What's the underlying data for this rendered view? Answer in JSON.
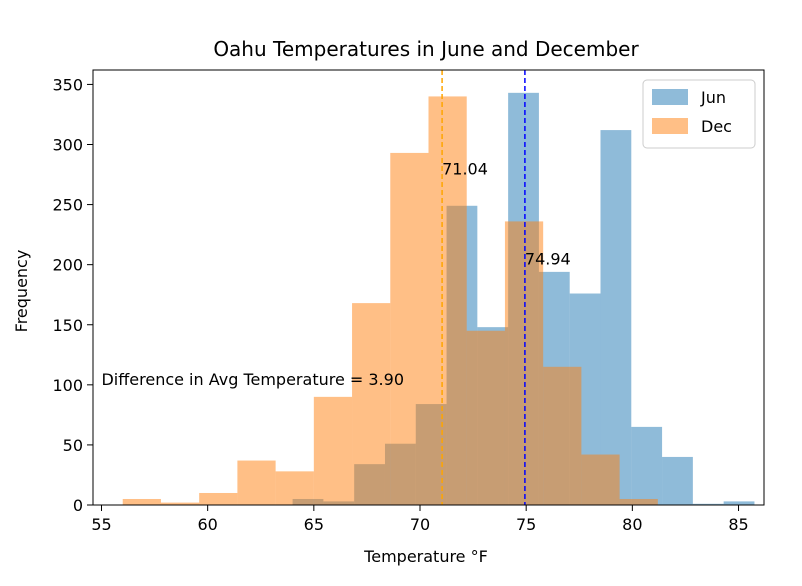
{
  "chart_data": {
    "type": "histogram",
    "title": "Oahu Temperatures in June and December",
    "xlabel": "Temperature °F",
    "ylabel": "Frequency",
    "xlim": [
      54.6,
      86.2
    ],
    "ylim": [
      0,
      362
    ],
    "xticks": [
      55,
      60,
      65,
      70,
      75,
      80,
      85
    ],
    "yticks": [
      0,
      50,
      100,
      150,
      200,
      250,
      300,
      350
    ],
    "grid": false,
    "legend_position": "top-right",
    "series": [
      {
        "name": "Jun",
        "color": "#1f77b4",
        "opacity": 0.5,
        "bins": [
          {
            "x0": 64.0,
            "x1": 65.45,
            "count": 5
          },
          {
            "x0": 65.45,
            "x1": 66.9,
            "count": 3
          },
          {
            "x0": 66.9,
            "x1": 68.35,
            "count": 34
          },
          {
            "x0": 68.35,
            "x1": 69.8,
            "count": 51
          },
          {
            "x0": 69.8,
            "x1": 71.25,
            "count": 84
          },
          {
            "x0": 71.25,
            "x1": 72.7,
            "count": 249
          },
          {
            "x0": 72.7,
            "x1": 74.15,
            "count": 148
          },
          {
            "x0": 74.15,
            "x1": 75.6,
            "count": 343
          },
          {
            "x0": 75.6,
            "x1": 77.05,
            "count": 194
          },
          {
            "x0": 77.05,
            "x1": 78.5,
            "count": 176
          },
          {
            "x0": 78.5,
            "x1": 79.95,
            "count": 312
          },
          {
            "x0": 79.95,
            "x1": 81.4,
            "count": 65
          },
          {
            "x0": 81.4,
            "x1": 82.85,
            "count": 40
          },
          {
            "x0": 82.85,
            "x1": 84.3,
            "count": 1
          },
          {
            "x0": 84.3,
            "x1": 85.75,
            "count": 3
          }
        ]
      },
      {
        "name": "Dec",
        "color": "#ff7f0e",
        "opacity": 0.5,
        "bins": [
          {
            "x0": 56.0,
            "x1": 57.8,
            "count": 5
          },
          {
            "x0": 57.8,
            "x1": 59.6,
            "count": 2
          },
          {
            "x0": 59.6,
            "x1": 61.4,
            "count": 10
          },
          {
            "x0": 61.4,
            "x1": 63.2,
            "count": 37
          },
          {
            "x0": 63.2,
            "x1": 65.0,
            "count": 28
          },
          {
            "x0": 65.0,
            "x1": 66.8,
            "count": 90
          },
          {
            "x0": 66.8,
            "x1": 68.6,
            "count": 168
          },
          {
            "x0": 68.6,
            "x1": 70.4,
            "count": 293
          },
          {
            "x0": 70.4,
            "x1": 72.2,
            "count": 340
          },
          {
            "x0": 72.2,
            "x1": 74.0,
            "count": 145
          },
          {
            "x0": 74.0,
            "x1": 75.8,
            "count": 236
          },
          {
            "x0": 75.8,
            "x1": 77.6,
            "count": 115
          },
          {
            "x0": 77.6,
            "x1": 79.4,
            "count": 42
          },
          {
            "x0": 79.4,
            "x1": 81.2,
            "count": 5
          },
          {
            "x0": 81.2,
            "x1": 83.0,
            "count": 0
          }
        ]
      }
    ],
    "mean_lines": [
      {
        "series": "Dec",
        "x": 71.04,
        "color": "#ffa500",
        "label": "71.04",
        "label_y": 280
      },
      {
        "series": "Jun",
        "x": 74.94,
        "color": "#0000ff",
        "label": "74.94",
        "label_y": 205
      }
    ],
    "annotation": {
      "text": "Difference in Avg Temperature = 3.90",
      "x": 55.0,
      "y": 105
    }
  }
}
